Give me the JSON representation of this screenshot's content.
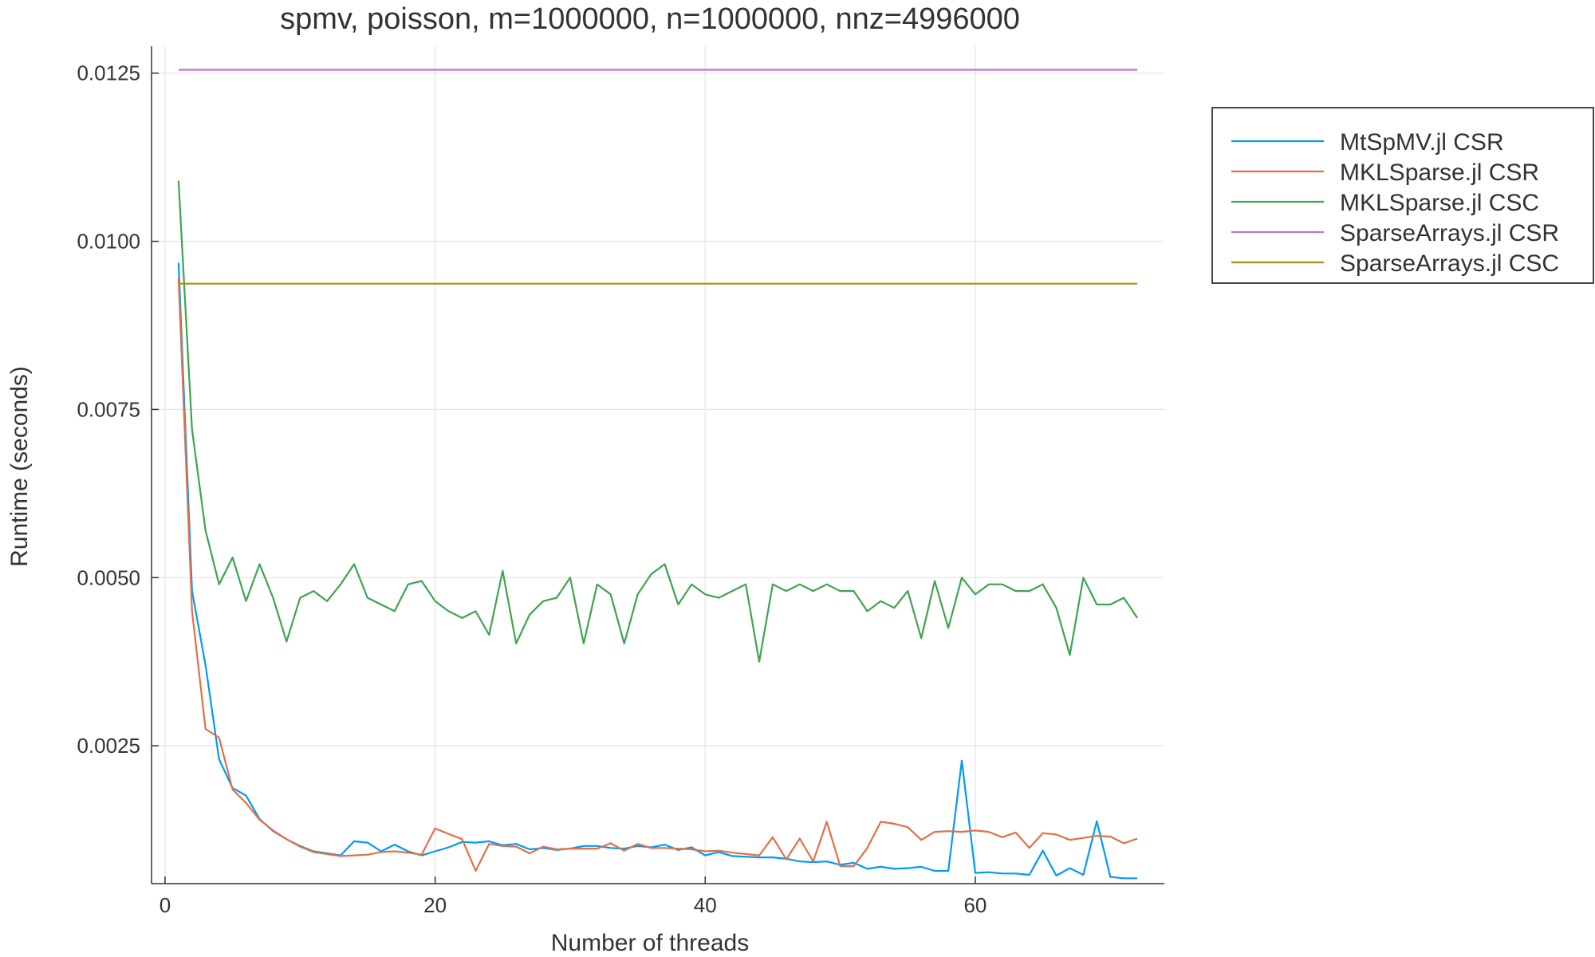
{
  "chart_data": {
    "type": "line",
    "title": "spmv, poisson, m=1000000, n=1000000, nnz=4996000",
    "xlabel": "Number of threads",
    "ylabel": "Runtime (seconds)",
    "xlim": [
      -1,
      74
    ],
    "ylim": [
      0.00045,
      0.0129
    ],
    "xticks": [
      0,
      20,
      40,
      60
    ],
    "xtick_labels": [
      "0",
      "20",
      "40",
      "60"
    ],
    "yticks": [
      0.0025,
      0.005,
      0.0075,
      0.01,
      0.0125
    ],
    "ytick_labels": [
      "0.0025",
      "0.0050",
      "0.0075",
      "0.0100",
      "0.0125"
    ],
    "grid": true,
    "legend_position": "outside-right-top",
    "x": [
      1,
      2,
      3,
      4,
      5,
      6,
      7,
      8,
      9,
      10,
      11,
      12,
      13,
      14,
      15,
      16,
      17,
      18,
      19,
      20,
      21,
      22,
      23,
      24,
      25,
      26,
      27,
      28,
      29,
      30,
      31,
      32,
      33,
      34,
      35,
      36,
      37,
      38,
      39,
      40,
      41,
      42,
      43,
      44,
      45,
      46,
      47,
      48,
      49,
      50,
      51,
      52,
      53,
      54,
      55,
      56,
      57,
      58,
      59,
      60,
      61,
      62,
      63,
      64,
      65,
      66,
      67,
      68,
      69,
      70,
      71,
      72
    ],
    "series": [
      {
        "name": "MtSpMV.jl CSR",
        "color": "#009AFA",
        "values": [
          0.00968,
          0.0048,
          0.0037,
          0.0023,
          0.00187,
          0.00176,
          0.00141,
          0.00123,
          0.00111,
          0.00101,
          0.00093,
          0.0009,
          0.00087,
          0.00108,
          0.00106,
          0.00093,
          0.00103,
          0.00093,
          0.00087,
          0.00093,
          0.00099,
          0.00107,
          0.00106,
          0.00108,
          0.00102,
          0.00104,
          0.00096,
          0.00098,
          0.00095,
          0.00097,
          0.00101,
          0.00101,
          0.00098,
          0.00097,
          0.00101,
          0.00099,
          0.00103,
          0.00095,
          0.00099,
          0.00087,
          0.00092,
          0.00086,
          0.00085,
          0.00084,
          0.00084,
          0.00082,
          0.00078,
          0.00077,
          0.00078,
          0.00073,
          0.00076,
          0.00067,
          0.0007,
          0.00067,
          0.00068,
          0.0007,
          0.00064,
          0.00064,
          0.00228,
          0.00061,
          0.00062,
          0.0006,
          0.0006,
          0.00058,
          0.00094,
          0.00057,
          0.00068,
          0.00058,
          0.00138,
          0.00055,
          0.00053,
          0.00053
        ]
      },
      {
        "name": "MKLSparse.jl CSR",
        "color": "#E36F47",
        "values": [
          0.00945,
          0.0045,
          0.00275,
          0.00262,
          0.00185,
          0.00165,
          0.0014,
          0.00124,
          0.00111,
          0.001,
          0.00092,
          0.00089,
          0.00086,
          0.00087,
          0.00088,
          0.00092,
          0.00093,
          0.00091,
          0.00088,
          0.00127,
          0.00119,
          0.00111,
          0.00064,
          0.00104,
          0.00101,
          0.001,
          0.0009,
          0.001,
          0.00096,
          0.00097,
          0.00097,
          0.00097,
          0.00105,
          0.00094,
          0.00104,
          0.00098,
          0.00098,
          0.00097,
          0.00096,
          0.00093,
          0.00094,
          0.00091,
          0.00089,
          0.00087,
          0.00114,
          0.00081,
          0.00112,
          0.00078,
          0.00137,
          0.00071,
          0.00071,
          0.00098,
          0.00137,
          0.00134,
          0.00129,
          0.0011,
          0.00122,
          0.00123,
          0.00122,
          0.00124,
          0.00122,
          0.00114,
          0.00121,
          0.00098,
          0.0012,
          0.00118,
          0.0011,
          0.00113,
          0.00116,
          0.00115,
          0.00105,
          0.00112
        ]
      },
      {
        "name": "MKLSparse.jl CSC",
        "color": "#3EA44E",
        "values": [
          0.0109,
          0.0072,
          0.0057,
          0.0049,
          0.0053,
          0.00465,
          0.0052,
          0.0047,
          0.00405,
          0.0047,
          0.0048,
          0.00465,
          0.0049,
          0.0052,
          0.0047,
          0.0046,
          0.0045,
          0.0049,
          0.00495,
          0.00465,
          0.0045,
          0.0044,
          0.0045,
          0.00415,
          0.0051,
          0.00402,
          0.00445,
          0.00465,
          0.0047,
          0.005,
          0.00402,
          0.0049,
          0.00475,
          0.00402,
          0.00475,
          0.00505,
          0.0052,
          0.0046,
          0.0049,
          0.00475,
          0.0047,
          0.0048,
          0.0049,
          0.00375,
          0.0049,
          0.0048,
          0.0049,
          0.0048,
          0.0049,
          0.0048,
          0.0048,
          0.0045,
          0.00465,
          0.00455,
          0.0048,
          0.0041,
          0.00495,
          0.00425,
          0.005,
          0.00475,
          0.0049,
          0.0049,
          0.0048,
          0.0048,
          0.0049,
          0.00455,
          0.00385,
          0.005,
          0.0046,
          0.0046,
          0.0047,
          0.0044
        ]
      },
      {
        "name": "SparseArrays.jl CSR",
        "color": "#C271D2",
        "values": [
          0.01255,
          0.01255,
          0.01255,
          0.01255,
          0.01255,
          0.01255,
          0.01255,
          0.01255,
          0.01255,
          0.01255,
          0.01255,
          0.01255,
          0.01255,
          0.01255,
          0.01255,
          0.01255,
          0.01255,
          0.01255,
          0.01255,
          0.01255,
          0.01255,
          0.01255,
          0.01255,
          0.01255,
          0.01255,
          0.01255,
          0.01255,
          0.01255,
          0.01255,
          0.01255,
          0.01255,
          0.01255,
          0.01255,
          0.01255,
          0.01255,
          0.01255,
          0.01255,
          0.01255,
          0.01255,
          0.01255,
          0.01255,
          0.01255,
          0.01255,
          0.01255,
          0.01255,
          0.01255,
          0.01255,
          0.01255,
          0.01255,
          0.01255,
          0.01255,
          0.01255,
          0.01255,
          0.01255,
          0.01255,
          0.01255,
          0.01255,
          0.01255,
          0.01255,
          0.01255,
          0.01255,
          0.01255,
          0.01255,
          0.01255,
          0.01255,
          0.01255,
          0.01255,
          0.01255,
          0.01255,
          0.01255,
          0.01255,
          0.01255
        ]
      },
      {
        "name": "SparseArrays.jl CSC",
        "color": "#AC8D18",
        "values": [
          0.00937,
          0.00937,
          0.00937,
          0.00937,
          0.00937,
          0.00937,
          0.00937,
          0.00937,
          0.00937,
          0.00937,
          0.00937,
          0.00937,
          0.00937,
          0.00937,
          0.00937,
          0.00937,
          0.00937,
          0.00937,
          0.00937,
          0.00937,
          0.00937,
          0.00937,
          0.00937,
          0.00937,
          0.00937,
          0.00937,
          0.00937,
          0.00937,
          0.00937,
          0.00937,
          0.00937,
          0.00937,
          0.00937,
          0.00937,
          0.00937,
          0.00937,
          0.00937,
          0.00937,
          0.00937,
          0.00937,
          0.00937,
          0.00937,
          0.00937,
          0.00937,
          0.00937,
          0.00937,
          0.00937,
          0.00937,
          0.00937,
          0.00937,
          0.00937,
          0.00937,
          0.00937,
          0.00937,
          0.00937,
          0.00937,
          0.00937,
          0.00937,
          0.00937,
          0.00937,
          0.00937,
          0.00937,
          0.00937,
          0.00937,
          0.00937,
          0.00937,
          0.00937,
          0.00937,
          0.00937,
          0.00937,
          0.00937,
          0.00937
        ]
      }
    ]
  }
}
